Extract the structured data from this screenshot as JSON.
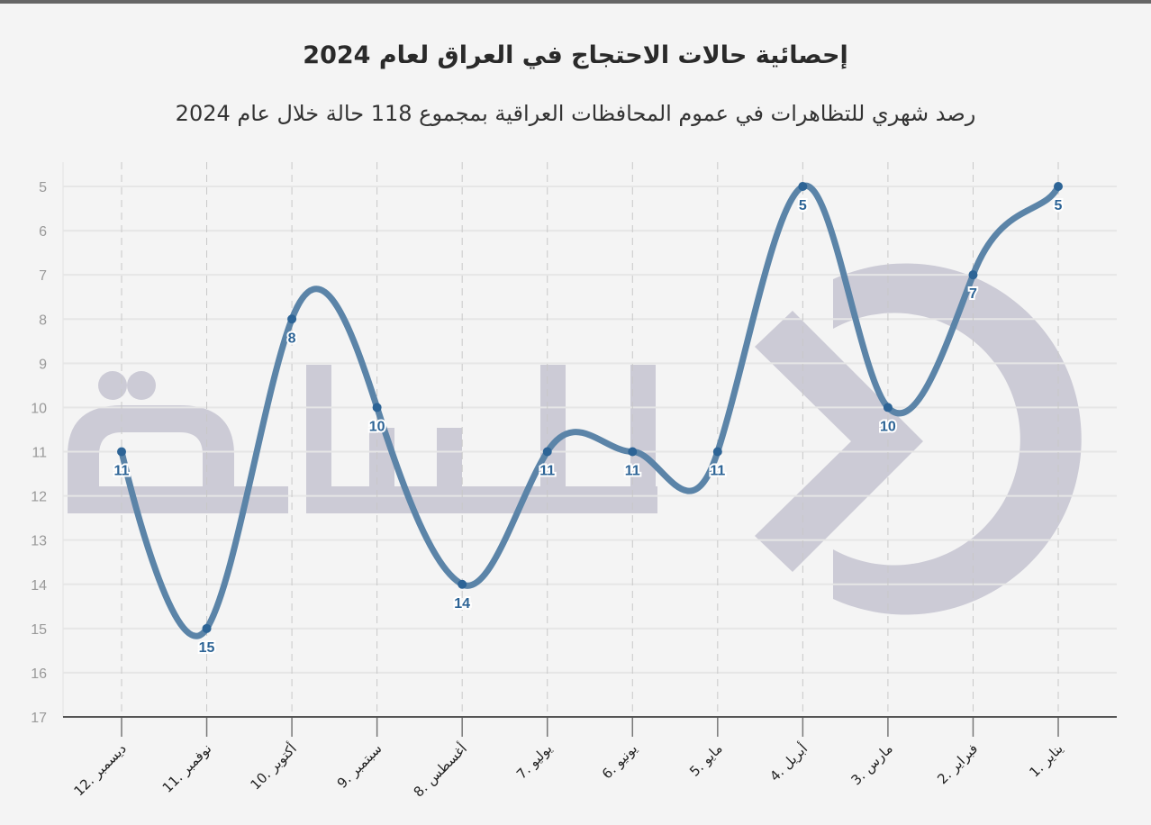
{
  "chart_data": {
    "type": "line",
    "title": "إحصائية حالات الاحتجاج في العراق لعام 2024",
    "subtitle": "رصد شهري للتظاهرات في عموم المحافظات العراقية بمجموع 118 حالة خلال عام 2024",
    "categories": [
      "12. ديسمبر",
      "11. نوفمبر",
      "10. أكتوبر",
      "9. سبتمبر",
      "8. أغسطس",
      "7. يوليو",
      "6. يونيو",
      "5. مايو",
      "4. أبريل",
      "3. مارس",
      "2. فبراير",
      "1. يناير"
    ],
    "values": [
      11,
      15,
      8,
      10,
      14,
      11,
      11,
      11,
      5,
      10,
      7,
      5
    ],
    "y_ticks": [
      5,
      6,
      7,
      8,
      9,
      10,
      11,
      12,
      13,
      14,
      15,
      16,
      17
    ],
    "ylim": [
      5,
      17
    ],
    "y_inverted": true,
    "xlabel": "",
    "ylabel": "",
    "grid": true,
    "line_color": "#5b84a8",
    "point_color": "#2d6496",
    "label_color": "#2d6496",
    "watermark": "الساعة"
  }
}
